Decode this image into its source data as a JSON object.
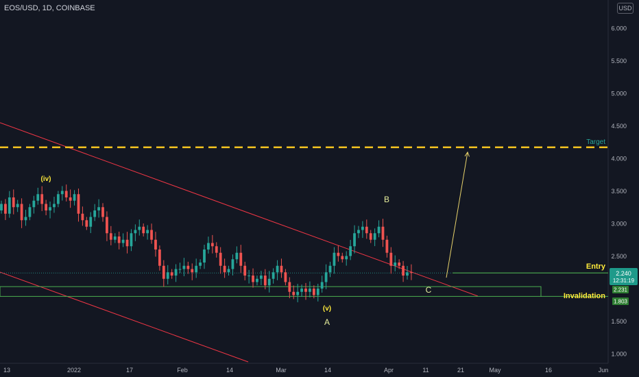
{
  "header": {
    "title": "EOS/USD, 1D, COINBASE",
    "currency": "USD"
  },
  "colors": {
    "background": "#131722",
    "bull": "#26a69a",
    "bear": "#ef5350",
    "channel": "#f23645",
    "target": "#f7c620",
    "arrow": "#e8d36b",
    "green_line": "#4caf50",
    "label_yellow": "#ffeb3b",
    "target_text": "#26a69a"
  },
  "chart_data": {
    "type": "candlestick",
    "x_tick_labels": [
      "13",
      "2022",
      "17",
      "Feb",
      "14",
      "Mar",
      "14",
      "Apr",
      "11",
      "21",
      "May",
      "16",
      "Jun"
    ],
    "y_tick_labels": [
      "6.000",
      "5.500",
      "5.000",
      "4.500",
      "4.000",
      "3.500",
      "3.000",
      "2.500",
      "1.500",
      "1.000"
    ],
    "y_range": [
      0.8,
      6.3
    ],
    "candles_close": [
      3.3,
      3.15,
      3.4,
      3.25,
      3.3,
      3.05,
      3.1,
      3.25,
      3.35,
      3.45,
      3.3,
      3.2,
      3.25,
      3.3,
      3.45,
      3.5,
      3.4,
      3.35,
      3.45,
      3.15,
      3.05,
      2.95,
      3.1,
      3.2,
      3.25,
      3.1,
      2.85,
      2.75,
      2.8,
      2.7,
      2.75,
      2.65,
      2.85,
      2.9,
      2.95,
      2.85,
      2.9,
      2.75,
      2.6,
      2.35,
      2.15,
      2.25,
      2.2,
      2.3,
      2.3,
      2.35,
      2.3,
      2.25,
      2.35,
      2.4,
      2.6,
      2.7,
      2.65,
      2.55,
      2.35,
      2.25,
      2.3,
      2.45,
      2.55,
      2.35,
      2.2,
      2.2,
      2.1,
      2.15,
      2.2,
      2.05,
      2.15,
      2.25,
      2.35,
      2.25,
      2.1,
      1.95,
      1.9,
      1.95,
      2.0,
      1.95,
      2.0,
      1.9,
      2.0,
      2.1,
      2.25,
      2.35,
      2.55,
      2.5,
      2.45,
      2.5,
      2.65,
      2.85,
      2.9,
      2.95,
      2.85,
      2.75,
      2.85,
      2.95,
      2.75,
      2.55,
      2.35,
      2.4,
      2.35,
      2.2,
      2.25,
      2.24
    ],
    "annotations": {
      "wave_iv": "(iv)",
      "wave_v": "(v)",
      "wave_a": "A",
      "wave_b": "B",
      "wave_c": "C",
      "target": "Target",
      "entry": "Entry",
      "invalidation": "Invalidation"
    },
    "levels": {
      "target": 4.17,
      "entry": 2.24,
      "entry_label": "2.240",
      "countdown": "12:31:19",
      "invalidation_top": 2.03,
      "invalidation_bottom": 1.88,
      "level_1_label": "2.231",
      "level_2_label": "1.803"
    },
    "grid": false,
    "legend": "none"
  }
}
